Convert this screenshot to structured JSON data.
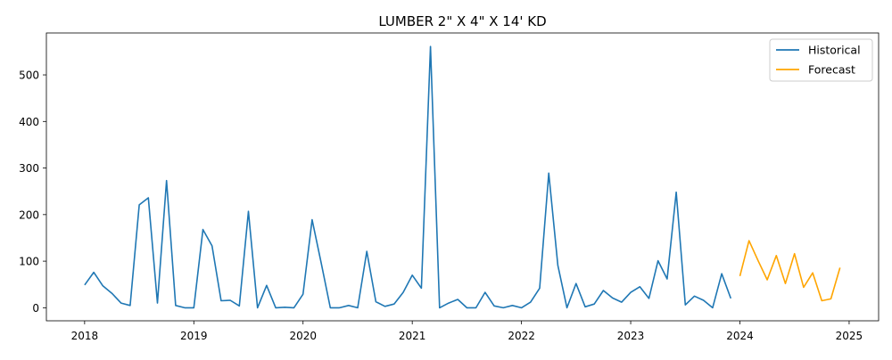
{
  "chart_data": {
    "type": "line",
    "title": "LUMBER 2\" X 4\" X 14' KD",
    "xlabel": "",
    "ylabel": "",
    "xlim": [
      2017.65,
      2025.27
    ],
    "ylim": [
      -28,
      590
    ],
    "x_ticks": [
      {
        "value": 2018,
        "label": "2018"
      },
      {
        "value": 2019,
        "label": "2019"
      },
      {
        "value": 2020,
        "label": "2020"
      },
      {
        "value": 2021,
        "label": "2021"
      },
      {
        "value": 2022,
        "label": "2022"
      },
      {
        "value": 2023,
        "label": "2023"
      },
      {
        "value": 2024,
        "label": "2024"
      },
      {
        "value": 2025,
        "label": "2025"
      }
    ],
    "y_ticks": [
      {
        "value": 0,
        "label": "0"
      },
      {
        "value": 100,
        "label": "100"
      },
      {
        "value": 200,
        "label": "200"
      },
      {
        "value": 300,
        "label": "300"
      },
      {
        "value": 400,
        "label": "400"
      },
      {
        "value": 500,
        "label": "500"
      }
    ],
    "grid": false,
    "legend": {
      "position": "top-right"
    },
    "series": [
      {
        "name": "Historical",
        "color": "#1f77b4",
        "start_year": 2018,
        "values": [
          49,
          76,
          47,
          31,
          10,
          5,
          221,
          236,
          10,
          273,
          5,
          0,
          0,
          168,
          133,
          15,
          16,
          4,
          207,
          0,
          48,
          0,
          1,
          0,
          29,
          189,
          96,
          0,
          0,
          5,
          0,
          121,
          13,
          3,
          8,
          33,
          70,
          42,
          561,
          0,
          10,
          18,
          0,
          0,
          33,
          4,
          0,
          5,
          0,
          12,
          42,
          289,
          91,
          0,
          52,
          2,
          8,
          37,
          21,
          12,
          33,
          45,
          20,
          101,
          62,
          248,
          6,
          25,
          16,
          0,
          73,
          20
        ]
      },
      {
        "name": "Forecast",
        "color": "#ffa500",
        "start_year": 2024,
        "values": [
          68,
          144,
          101,
          60,
          112,
          52,
          116,
          44,
          75,
          15,
          19,
          86
        ]
      }
    ]
  }
}
